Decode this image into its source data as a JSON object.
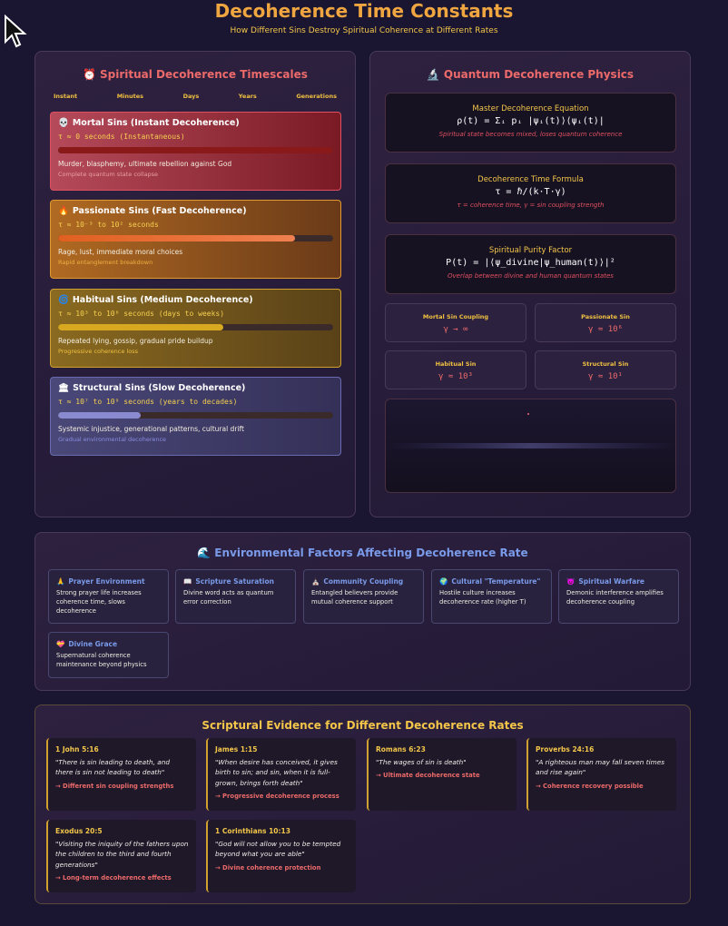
{
  "title": "Decoherence Time Constants",
  "subtitle": "How Different Sins Destroy Spiritual Coherence at Different Rates",
  "timescales": {
    "title": "Spiritual Decoherence Timescales",
    "icon": "⏰",
    "scale": [
      "Instant",
      "Minutes",
      "Days",
      "Years",
      "Generations"
    ],
    "sins": [
      {
        "icon": "💀",
        "title": "Mortal Sins (Instant Decoherence)",
        "tau": "τ ≈ 0 seconds (Instantaneous)",
        "fill": 1.0,
        "desc": "Murder, blasphemy, ultimate rebellion against God",
        "note": "Complete quantum state collapse"
      },
      {
        "icon": "🔥",
        "title": "Passionate Sins (Fast Decoherence)",
        "tau": "τ ≈ 10⁻³ to 10² seconds",
        "fill": 0.86,
        "desc": "Rage, lust, immediate moral choices",
        "note": "Rapid entanglement breakdown"
      },
      {
        "icon": "🌀",
        "title": "Habitual Sins (Medium Decoherence)",
        "tau": "τ ≈ 10³ to 10⁶ seconds (days to weeks)",
        "fill": 0.6,
        "desc": "Repeated lying, gossip, gradual pride buildup",
        "note": "Progressive coherence loss"
      },
      {
        "icon": "🏛",
        "title": "Structural Sins (Slow Decoherence)",
        "tau": "τ ≈ 10⁷ to 10⁹ seconds (years to decades)",
        "fill": 0.3,
        "desc": "Systemic injustice, generational patterns, cultural drift",
        "note": "Gradual environmental decoherence"
      }
    ]
  },
  "physics": {
    "title": "Quantum Decoherence Physics",
    "icon": "🔬",
    "equations": [
      {
        "heading": "Master Decoherence Equation",
        "eq": "ρ(t) = Σᵢ pᵢ |ψᵢ(t)⟩⟨ψᵢ(t)|",
        "caption": "Spiritual state becomes mixed, loses quantum coherence"
      },
      {
        "heading": "Decoherence Time Formula",
        "eq": "τ = ℏ/(k·T·γ)",
        "caption": "τ = coherence time, γ = sin coupling strength"
      },
      {
        "heading": "Spiritual Purity Factor",
        "eq": "P(t) = |⟨ψ_divine|ψ_human(t)⟩|²",
        "caption": "Overlap between divine and human quantum states"
      }
    ],
    "couplings": [
      {
        "label": "Mortal Sin Coupling",
        "value": "γ → ∞"
      },
      {
        "label": "Passionate Sin",
        "value": "γ ≈ 10⁶"
      },
      {
        "label": "Habitual Sin",
        "value": "γ ≈ 10³"
      },
      {
        "label": "Structural Sin",
        "value": "γ ≈ 10¹"
      }
    ]
  },
  "environment": {
    "title": "Environmental Factors Affecting Decoherence Rate",
    "icon": "🌊",
    "factors": [
      {
        "icon": "🙏",
        "title": "Prayer Environment",
        "desc": "Strong prayer life increases coherence time, slows decoherence"
      },
      {
        "icon": "📖",
        "title": "Scripture Saturation",
        "desc": "Divine word acts as quantum error correction"
      },
      {
        "icon": "⛪",
        "title": "Community Coupling",
        "desc": "Entangled believers provide mutual coherence support"
      },
      {
        "icon": "🌍",
        "title": "Cultural \"Temperature\"",
        "desc": "Hostile culture increases decoherence rate (higher T)"
      },
      {
        "icon": "👿",
        "title": "Spiritual Warfare",
        "desc": "Demonic interference amplifies decoherence coupling"
      },
      {
        "icon": "💝",
        "title": "Divine Grace",
        "desc": "Supernatural coherence maintenance beyond physics"
      }
    ]
  },
  "scripture": {
    "title": "Scriptural Evidence for Different Decoherence Rates",
    "verses": [
      {
        "ref": "1 John 5:16",
        "quote": "\"There is sin leading to death, and there is sin not leading to death\"",
        "result": "→ Different sin coupling strengths"
      },
      {
        "ref": "James 1:15",
        "quote": "\"When desire has conceived, it gives birth to sin; and sin, when it is full-grown, brings forth death\"",
        "result": "→ Progressive decoherence process"
      },
      {
        "ref": "Romans 6:23",
        "quote": "\"The wages of sin is death\"",
        "result": "→ Ultimate decoherence state"
      },
      {
        "ref": "Proverbs 24:16",
        "quote": "\"A righteous man may fall seven times and rise again\"",
        "result": "→ Coherence recovery possible"
      },
      {
        "ref": "Exodus 20:5",
        "quote": "\"Visiting the iniquity of the fathers upon the children to the third and fourth generations\"",
        "result": "→ Long-term decoherence effects"
      },
      {
        "ref": "1 Corinthians 10:13",
        "quote": "\"God will not allow you to be tempted beyond what you are able\"",
        "result": "→ Divine coherence protection"
      }
    ]
  }
}
